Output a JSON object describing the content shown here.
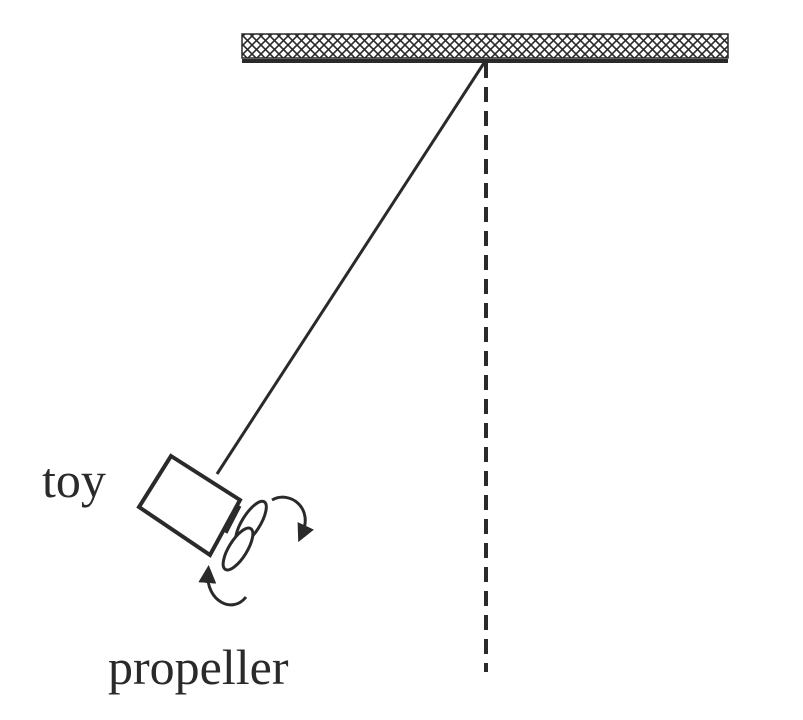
{
  "labels": {
    "toy": "toy",
    "propeller": "propeller"
  },
  "colors": {
    "ink": "#2a2a2a",
    "background": "#ffffff"
  }
}
